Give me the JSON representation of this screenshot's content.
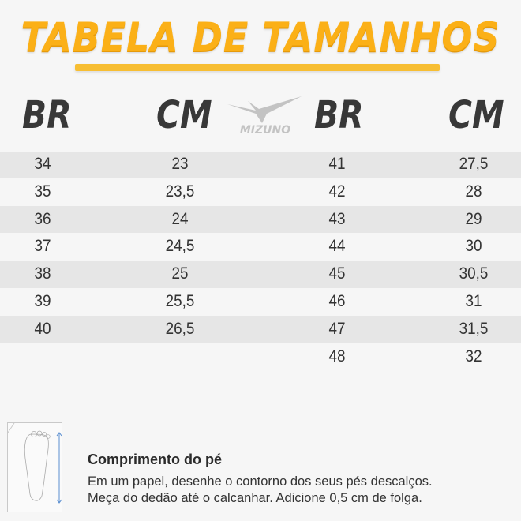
{
  "title": "TABELA DE TAMANHOS",
  "headers": {
    "br1": "BR",
    "cm1": "CM",
    "br2": "BR",
    "cm2": "CM"
  },
  "logo": {
    "text": "MIZUNO",
    "icon": "mizuno-runbird-logo",
    "color": "#c3c3c3"
  },
  "colors": {
    "title": "#fbb017",
    "band": "#e6e6e6",
    "header": "#383838"
  },
  "left_rows": [
    {
      "br": "34",
      "cm": "23"
    },
    {
      "br": "35",
      "cm": "23,5"
    },
    {
      "br": "36",
      "cm": "24"
    },
    {
      "br": "37",
      "cm": "24,5"
    },
    {
      "br": "38",
      "cm": "25"
    },
    {
      "br": "39",
      "cm": "25,5"
    },
    {
      "br": "40",
      "cm": "26,5"
    }
  ],
  "right_rows": [
    {
      "br": "41",
      "cm": "27,5"
    },
    {
      "br": "42",
      "cm": "28"
    },
    {
      "br": "43",
      "cm": "29"
    },
    {
      "br": "44",
      "cm": "30"
    },
    {
      "br": "45",
      "cm": "30,5"
    },
    {
      "br": "46",
      "cm": "31"
    },
    {
      "br": "47",
      "cm": "31,5"
    },
    {
      "br": "48",
      "cm": "32"
    }
  ],
  "footer": {
    "icon": "foot-measure-icon",
    "heading": "Comprimento do pé",
    "line1": "Em um papel, desenhe o contorno dos seus pés descalços.",
    "line2": "Meça do dedão até o calcanhar. Adicione 0,5 cm de folga."
  }
}
